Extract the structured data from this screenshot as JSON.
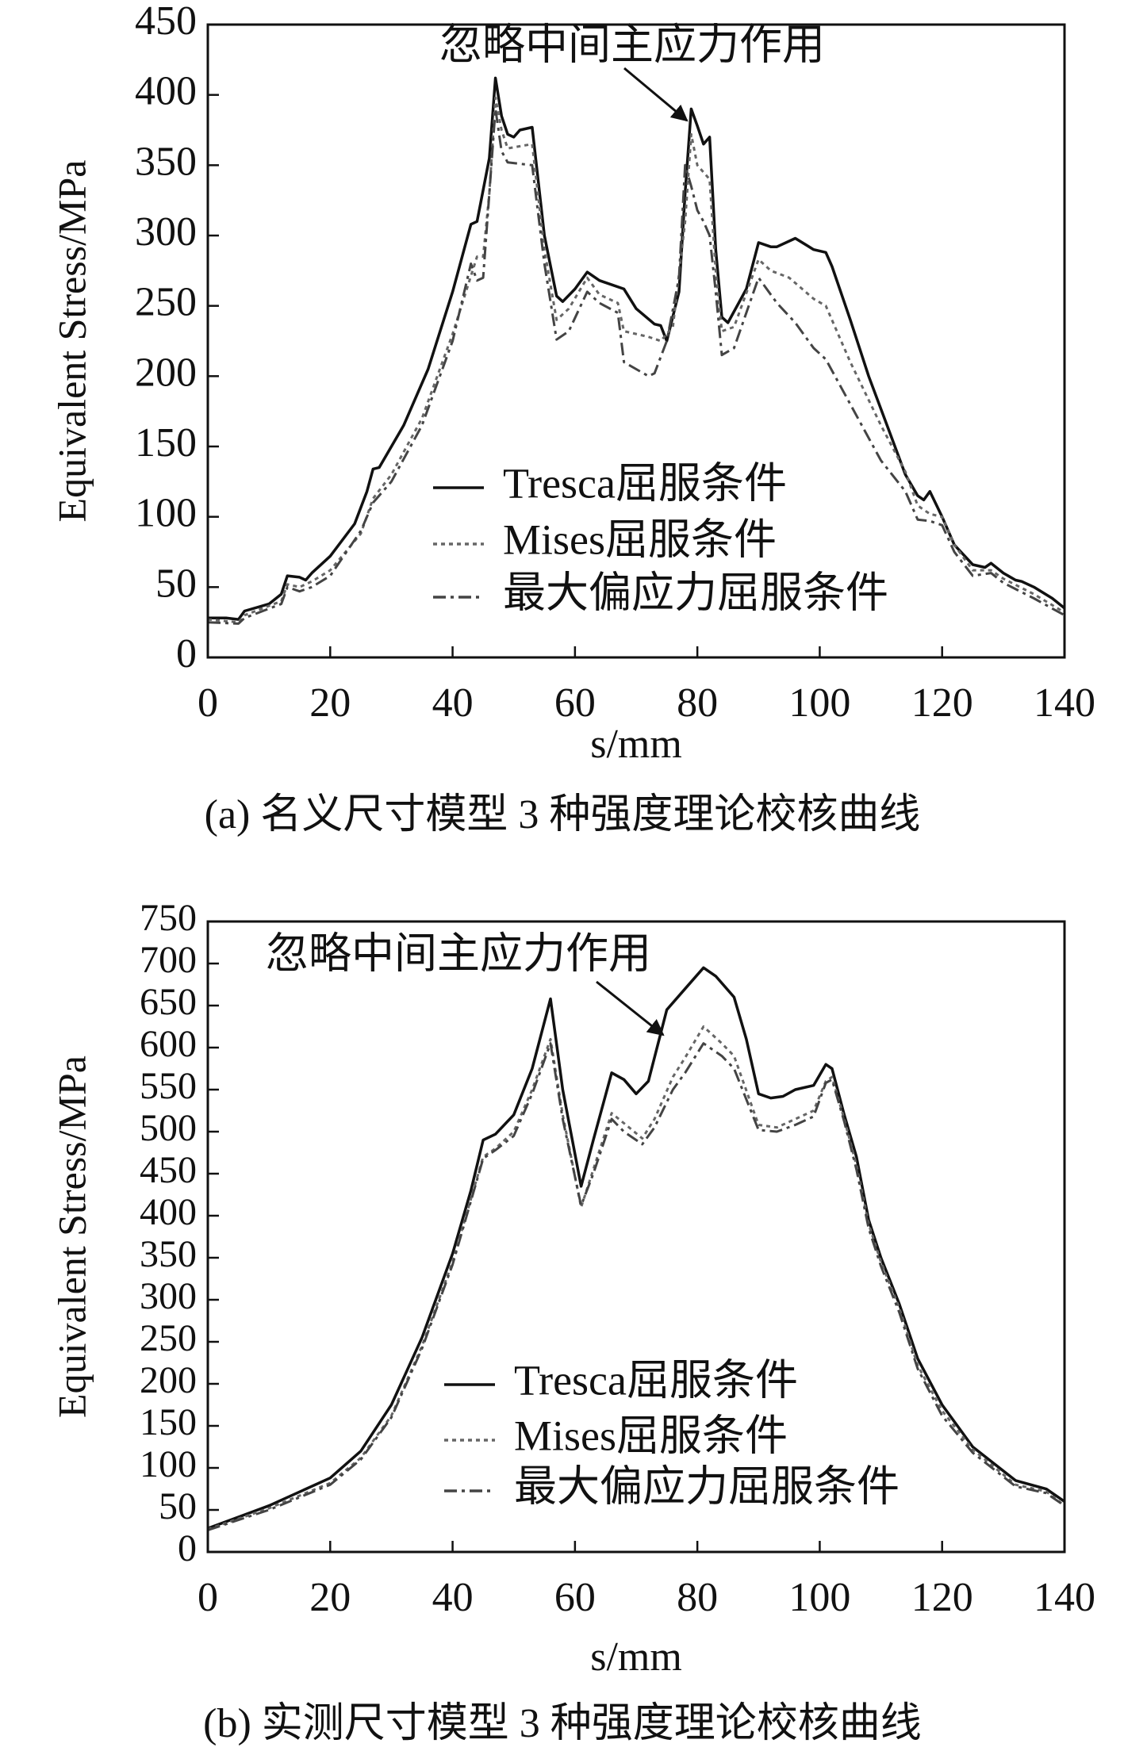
{
  "chart_data": [
    {
      "type": "line",
      "annotation": "忽略中间主应力作用",
      "xlabel": "s/mm",
      "ylabel": "Equivalent Stress/MPa",
      "caption": "(a) 名义尺寸模型 3 种强度理论校核曲线",
      "legend": "lower center",
      "xlim": [
        0,
        140
      ],
      "xticks": [
        0,
        20,
        40,
        60,
        80,
        100,
        120,
        140
      ],
      "ylim": [
        0,
        450
      ],
      "yticks": [
        0,
        50,
        100,
        150,
        200,
        250,
        300,
        350,
        400,
        450
      ],
      "series": [
        {
          "name": "Tresca屈服条件",
          "color": "#111111",
          "linestyle": "solid",
          "x": [
            0,
            3,
            5,
            6,
            10,
            12,
            13,
            15,
            16,
            17,
            20,
            24,
            26,
            27,
            28,
            32,
            36,
            40,
            43,
            44,
            46,
            47,
            48,
            49,
            50,
            51,
            53,
            55,
            57,
            58,
            60,
            62,
            64,
            68,
            70,
            73,
            74,
            75,
            77,
            78,
            79,
            80,
            81,
            82,
            83,
            84,
            85,
            88,
            90,
            92,
            93,
            96,
            99,
            101,
            102,
            105,
            108,
            111,
            114,
            116,
            117,
            118,
            120,
            122,
            125,
            127,
            128,
            130,
            132,
            133,
            135,
            138,
            140
          ],
          "values": [
            28,
            28,
            27,
            33,
            38,
            45,
            58,
            57,
            55,
            60,
            72,
            95,
            118,
            134,
            135,
            165,
            205,
            260,
            308,
            310,
            355,
            412,
            385,
            372,
            370,
            375,
            377,
            300,
            257,
            253,
            262,
            274,
            268,
            262,
            248,
            237,
            236,
            225,
            260,
            330,
            390,
            378,
            365,
            370,
            290,
            242,
            238,
            262,
            295,
            292,
            292,
            298,
            290,
            288,
            278,
            240,
            200,
            165,
            130,
            115,
            112,
            118,
            100,
            80,
            66,
            64,
            67,
            60,
            55,
            54,
            50,
            42,
            35
          ]
        },
        {
          "name": "Mises屈服条件",
          "color": "#666666",
          "linestyle": "dotted",
          "x": [
            0,
            5,
            6,
            12,
            13,
            15,
            17,
            20,
            25,
            27,
            30,
            35,
            40,
            44,
            45,
            46,
            47,
            48,
            49,
            53,
            55,
            57,
            59,
            62,
            64,
            67,
            68,
            72,
            74,
            76,
            78,
            79,
            80,
            81,
            82,
            83,
            84,
            86,
            90,
            92,
            95,
            99,
            101,
            105,
            110,
            114,
            116,
            118,
            120,
            122,
            125,
            128,
            130,
            135,
            140
          ],
          "values": [
            27,
            25,
            30,
            40,
            52,
            50,
            54,
            62,
            88,
            113,
            130,
            170,
            230,
            285,
            285,
            330,
            398,
            375,
            362,
            365,
            290,
            240,
            248,
            270,
            258,
            252,
            232,
            228,
            225,
            235,
            310,
            372,
            350,
            345,
            340,
            275,
            232,
            235,
            283,
            275,
            270,
            255,
            250,
            210,
            165,
            132,
            108,
            102,
            100,
            80,
            62,
            62,
            56,
            45,
            32
          ]
        },
        {
          "name": "最大偏应力屈服条件",
          "color": "#444444",
          "linestyle": "dashdot",
          "x": [
            0,
            5,
            6,
            12,
            13,
            15,
            17,
            20,
            25,
            27,
            30,
            35,
            40,
            43,
            44,
            45,
            46,
            47,
            48,
            49,
            53,
            55,
            57,
            59,
            62,
            64,
            67,
            68,
            72,
            73,
            75,
            77,
            78,
            79,
            80,
            81,
            82,
            83,
            84,
            86,
            90,
            93,
            96,
            99,
            101,
            105,
            110,
            114,
            116,
            118,
            120,
            122,
            125,
            128,
            130,
            135,
            140
          ],
          "values": [
            25,
            24,
            28,
            38,
            50,
            47,
            50,
            58,
            90,
            110,
            125,
            165,
            225,
            280,
            268,
            270,
            330,
            390,
            360,
            352,
            350,
            280,
            226,
            232,
            260,
            252,
            245,
            210,
            200,
            202,
            225,
            270,
            350,
            335,
            318,
            310,
            300,
            260,
            215,
            220,
            270,
            252,
            238,
            220,
            212,
            180,
            140,
            118,
            98,
            97,
            94,
            75,
            58,
            60,
            53,
            42,
            30
          ]
        }
      ]
    },
    {
      "type": "line",
      "annotation": "忽略中间主应力作用",
      "xlabel": "s/mm",
      "ylabel": "Equivalent Stress/MPa",
      "caption": "(b) 实测尺寸模型 3 种强度理论校核曲线",
      "legend": "lower center",
      "xlim": [
        0,
        140
      ],
      "xticks": [
        0,
        20,
        40,
        60,
        80,
        100,
        120,
        140
      ],
      "ylim": [
        0,
        750
      ],
      "yticks": [
        0,
        50,
        100,
        150,
        200,
        250,
        300,
        350,
        400,
        450,
        500,
        550,
        600,
        650,
        700,
        750
      ],
      "series": [
        {
          "name": "Tresca屈服条件",
          "color": "#111111",
          "linestyle": "solid",
          "x": [
            0,
            10,
            20,
            25,
            30,
            35,
            40,
            43,
            45,
            47,
            50,
            53,
            56,
            58,
            61,
            63,
            66,
            68,
            70,
            72,
            75,
            78,
            81,
            83,
            86,
            88,
            90,
            92,
            94,
            96,
            99,
            101,
            102,
            104,
            106,
            108,
            110,
            113,
            116,
            120,
            125,
            132,
            137,
            140
          ],
          "values": [
            28,
            55,
            88,
            120,
            175,
            255,
            355,
            430,
            490,
            497,
            520,
            575,
            658,
            550,
            435,
            490,
            570,
            562,
            545,
            560,
            645,
            670,
            695,
            685,
            660,
            610,
            545,
            540,
            542,
            550,
            555,
            580,
            575,
            520,
            470,
            395,
            350,
            295,
            230,
            175,
            125,
            85,
            75,
            60
          ]
        },
        {
          "name": "Mises屈服条件",
          "color": "#666666",
          "linestyle": "dotted",
          "x": [
            0,
            10,
            20,
            25,
            30,
            35,
            40,
            45,
            47,
            50,
            53,
            56,
            58,
            61,
            63,
            66,
            68,
            71,
            73,
            76,
            78,
            81,
            84,
            86,
            90,
            93,
            96,
            99,
            101,
            102,
            104,
            106,
            108,
            110,
            113,
            116,
            120,
            125,
            132,
            137,
            140
          ],
          "values": [
            27,
            52,
            82,
            112,
            162,
            245,
            345,
            470,
            480,
            500,
            550,
            610,
            520,
            410,
            455,
            522,
            510,
            492,
            515,
            565,
            588,
            625,
            605,
            590,
            508,
            505,
            515,
            525,
            560,
            565,
            515,
            460,
            390,
            345,
            290,
            222,
            168,
            122,
            80,
            72,
            55
          ]
        },
        {
          "name": "最大偏应力屈服条件",
          "color": "#444444",
          "linestyle": "dashdot",
          "x": [
            0,
            10,
            20,
            25,
            30,
            35,
            40,
            45,
            47,
            50,
            53,
            56,
            58,
            61,
            63,
            66,
            68,
            71,
            73,
            76,
            78,
            81,
            84,
            86,
            90,
            93,
            96,
            99,
            101,
            102,
            104,
            106,
            108,
            110,
            113,
            116,
            120,
            125,
            132,
            137,
            140
          ],
          "values": [
            26,
            50,
            80,
            110,
            160,
            242,
            342,
            468,
            478,
            495,
            545,
            605,
            515,
            412,
            450,
            515,
            500,
            485,
            505,
            550,
            570,
            605,
            590,
            575,
            502,
            500,
            508,
            518,
            558,
            562,
            512,
            455,
            385,
            340,
            285,
            218,
            162,
            118,
            78,
            70,
            55
          ]
        }
      ]
    }
  ]
}
